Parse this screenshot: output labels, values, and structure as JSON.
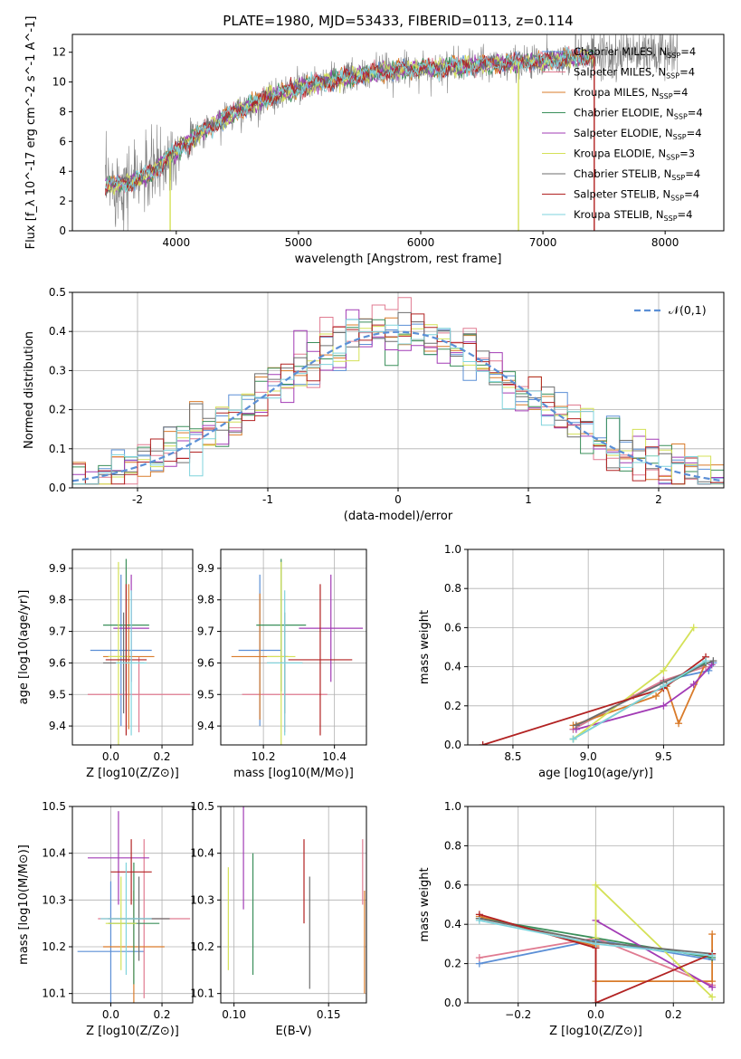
{
  "figure": {
    "title": "PLATE=1980, MJD=53433, FIBERID=0113, z=0.114"
  },
  "colors": {
    "chabrier_miles": "#5b8fd6",
    "salpeter_miles": "#e07b91",
    "kroupa_miles": "#d97b2a",
    "chabrier_elodie": "#3a8f5a",
    "salpeter_elodie": "#a23bb5",
    "kroupa_elodie": "#d4e157",
    "chabrier_stelib": "#6e6e6e",
    "salpeter_stelib": "#b22222",
    "kroupa_stelib": "#7fd3dc",
    "gaussian": "#5b8fd6"
  },
  "chart_data": [
    {
      "id": "spectrum",
      "type": "line",
      "title": "PLATE=1980, MJD=53433, FIBERID=0113, z=0.114",
      "xlabel": "wavelength [Angstrom, rest frame]",
      "ylabel": "Flux [f_λ 10^-17 erg cm^-2 s^-1 A^-1]",
      "xlim": [
        3150,
        8480
      ],
      "ylim": [
        0,
        13.2
      ],
      "xticks": [
        4000,
        5000,
        6000,
        7000,
        8000
      ],
      "yticks": [
        0,
        2,
        4,
        6,
        8,
        10,
        12
      ],
      "grid": false,
      "legend_position": "right",
      "legend": [
        {
          "name": "Chabrier MILES",
          "nssp": "4",
          "color_key": "chabrier_miles"
        },
        {
          "name": "Salpeter MILES",
          "nssp": "4",
          "color_key": "salpeter_miles"
        },
        {
          "name": "Kroupa MILES",
          "nssp": "4",
          "color_key": "kroupa_miles"
        },
        {
          "name": "Chabrier ELODIE",
          "nssp": "4",
          "color_key": "chabrier_elodie"
        },
        {
          "name": "Salpeter ELODIE",
          "nssp": "4",
          "color_key": "salpeter_elodie"
        },
        {
          "name": "Kroupa ELODIE",
          "nssp": "3",
          "color_key": "kroupa_elodie"
        },
        {
          "name": "Chabrier STELIB",
          "nssp": "4",
          "color_key": "chabrier_stelib"
        },
        {
          "name": "Salpeter STELIB",
          "nssp": "4",
          "color_key": "salpeter_stelib"
        },
        {
          "name": "Kroupa STELIB",
          "nssp": "4",
          "color_key": "kroupa_stelib"
        }
      ],
      "continuum": {
        "x": [
          3400,
          3600,
          3800,
          4000,
          4200,
          4400,
          4600,
          4800,
          5000,
          5200,
          5400,
          5600,
          5800,
          6000,
          6200,
          6400,
          6600,
          6800,
          7000,
          7200,
          7400
        ],
        "y": [
          3.0,
          3.2,
          3.9,
          5.4,
          6.6,
          7.6,
          8.4,
          9.1,
          9.6,
          10.0,
          10.3,
          10.6,
          10.8,
          10.9,
          11.0,
          11.1,
          11.2,
          11.3,
          11.4,
          11.6,
          11.7
        ]
      },
      "data_wavelength_range": [
        3420,
        8100
      ],
      "model_wavelength_range": [
        3420,
        7420
      ],
      "spikes": [
        {
          "x": 3950,
          "color_key": "kroupa_elodie"
        },
        {
          "x": 6800,
          "color_key": "kroupa_elodie"
        },
        {
          "x": 7420,
          "color_key": "salpeter_stelib"
        }
      ]
    },
    {
      "id": "residuals",
      "type": "bar",
      "xlabel": "(data-model)/error",
      "ylabel": "Normed distribution",
      "xlim": [
        -2.5,
        2.5
      ],
      "ylim": [
        0,
        0.5
      ],
      "xticks": [
        -2,
        -1,
        0,
        1,
        2
      ],
      "yticks": [
        0.0,
        0.1,
        0.2,
        0.3,
        0.4,
        0.5
      ],
      "grid": true,
      "legend_position": "top-right",
      "legend": [
        {
          "name": "𝒩(0,1)",
          "color_key": "gaussian"
        }
      ],
      "bin_width": 0.1,
      "bin_range": [
        -2.5,
        2.5
      ]
    },
    {
      "id": "age_vs_Z",
      "type": "scatter",
      "xlabel": "Z [log10(Z/Z⊙)]",
      "ylabel": "age [log10(age/yr)]",
      "xlim": [
        -0.15,
        0.32
      ],
      "ylim": [
        9.34,
        9.96
      ],
      "xticks": [
        0.0,
        0.2
      ],
      "xticklabels": [
        "0.0",
        "0.2"
      ],
      "yticks": [
        9.4,
        9.5,
        9.6,
        9.7,
        9.8,
        9.9
      ],
      "grid": true,
      "points": [
        {
          "x": 0.04,
          "y": 9.64,
          "xerr": 0.12,
          "yerr": 0.24,
          "color_key": "chabrier_miles"
        },
        {
          "x": 0.11,
          "y": 9.5,
          "xerr": 0.2,
          "yerr": 0.12,
          "color_key": "salpeter_miles"
        },
        {
          "x": 0.07,
          "y": 9.62,
          "xerr": 0.1,
          "yerr": 0.23,
          "color_key": "kroupa_miles"
        },
        {
          "x": 0.06,
          "y": 9.72,
          "xerr": 0.09,
          "yerr": 0.21,
          "color_key": "chabrier_elodie"
        },
        {
          "x": 0.08,
          "y": 9.71,
          "xerr": 0.07,
          "yerr": 0.17,
          "color_key": "salpeter_elodie"
        },
        {
          "x": 0.03,
          "y": 9.62,
          "xerr": 0.04,
          "yerr": 0.3,
          "color_key": "kroupa_elodie"
        },
        {
          "x": 0.05,
          "y": 9.6,
          "xerr": 0.08,
          "yerr": 0.16,
          "color_key": "chabrier_stelib"
        },
        {
          "x": 0.06,
          "y": 9.61,
          "xerr": 0.08,
          "yerr": 0.24,
          "color_key": "salpeter_stelib"
        },
        {
          "x": 0.08,
          "y": 9.6,
          "xerr": 0.06,
          "yerr": 0.23,
          "color_key": "kroupa_stelib"
        }
      ]
    },
    {
      "id": "age_vs_mass",
      "type": "scatter",
      "xlabel": "mass [log10(M/M⊙)]",
      "ylabel": "",
      "xlim": [
        10.08,
        10.49
      ],
      "ylim": [
        9.34,
        9.96
      ],
      "xticks": [
        10.2,
        10.4
      ],
      "xticklabels": [
        "10.2",
        "10.4"
      ],
      "yticks": [
        9.4,
        9.5,
        9.6,
        9.7,
        9.8,
        9.9
      ],
      "grid": true,
      "points": [
        {
          "x": 10.19,
          "y": 9.64,
          "xerr": 0.06,
          "yerr": 0.24,
          "color_key": "chabrier_miles"
        },
        {
          "x": 10.26,
          "y": 9.5,
          "xerr": 0.12,
          "yerr": 0.12,
          "color_key": "salpeter_miles"
        },
        {
          "x": 10.19,
          "y": 9.62,
          "xerr": 0.08,
          "yerr": 0.2,
          "color_key": "kroupa_miles"
        },
        {
          "x": 10.25,
          "y": 9.72,
          "xerr": 0.07,
          "yerr": 0.21,
          "color_key": "chabrier_elodie"
        },
        {
          "x": 10.39,
          "y": 9.71,
          "xerr": 0.09,
          "yerr": 0.17,
          "color_key": "salpeter_elodie"
        },
        {
          "x": 10.25,
          "y": 9.62,
          "xerr": 0.04,
          "yerr": 0.3,
          "color_key": "kroupa_elodie"
        },
        {
          "x": 10.26,
          "y": 9.6,
          "xerr": 0.05,
          "yerr": 0.16,
          "color_key": "chabrier_stelib"
        },
        {
          "x": 10.36,
          "y": 9.61,
          "xerr": 0.09,
          "yerr": 0.24,
          "color_key": "salpeter_stelib"
        },
        {
          "x": 10.26,
          "y": 9.6,
          "xerr": 0.05,
          "yerr": 0.23,
          "color_key": "kroupa_stelib"
        }
      ]
    },
    {
      "id": "weight_vs_age",
      "type": "line",
      "xlabel": "age [log10(age/yr)]",
      "ylabel": "mass weight",
      "xlim": [
        8.2,
        9.9
      ],
      "ylim": [
        0,
        1.0
      ],
      "xticks": [
        8.5,
        9.0,
        9.5
      ],
      "xticklabels": [
        "8.5",
        "9.0",
        "9.5"
      ],
      "yticks": [
        0.0,
        0.2,
        0.4,
        0.6,
        0.8,
        1.0
      ],
      "grid": true,
      "series": [
        {
          "color_key": "chabrier_miles",
          "x": [
            8.9,
            9.5,
            9.8,
            9.83
          ],
          "y": [
            0.08,
            0.33,
            0.38,
            0.42
          ]
        },
        {
          "color_key": "salpeter_miles",
          "x": [
            8.9,
            9.3,
            9.5,
            9.78
          ],
          "y": [
            0.08,
            0.25,
            0.33,
            0.4
          ]
        },
        {
          "color_key": "kroupa_miles",
          "x": [
            8.9,
            9.45,
            9.52,
            9.6,
            9.78
          ],
          "y": [
            0.1,
            0.25,
            0.3,
            0.11,
            0.42
          ]
        },
        {
          "color_key": "chabrier_elodie",
          "x": [
            8.9,
            9.5,
            9.78
          ],
          "y": [
            0.03,
            0.3,
            0.42
          ]
        },
        {
          "color_key": "salpeter_elodie",
          "x": [
            8.92,
            9.5,
            9.7,
            9.82
          ],
          "y": [
            0.08,
            0.2,
            0.31,
            0.41
          ]
        },
        {
          "color_key": "kroupa_elodie",
          "x": [
            8.9,
            9.5,
            9.7
          ],
          "y": [
            0.03,
            0.38,
            0.6
          ]
        },
        {
          "color_key": "chabrier_stelib",
          "x": [
            8.92,
            9.5,
            9.83
          ],
          "y": [
            0.1,
            0.32,
            0.43
          ]
        },
        {
          "color_key": "salpeter_stelib",
          "x": [
            8.3,
            9.5,
            9.78
          ],
          "y": [
            0.0,
            0.29,
            0.45
          ]
        },
        {
          "color_key": "kroupa_stelib",
          "x": [
            8.9,
            9.5,
            9.78
          ],
          "y": [
            0.03,
            0.3,
            0.43
          ]
        }
      ]
    },
    {
      "id": "mass_vs_Z",
      "type": "scatter",
      "xlabel": "Z [log10(Z/Z⊙)]",
      "ylabel": "mass [log10(M/M⊙)]",
      "xlim": [
        -0.15,
        0.32
      ],
      "ylim": [
        10.08,
        10.5
      ],
      "xticks": [
        0.0,
        0.2
      ],
      "xticklabels": [
        "0.0",
        "0.2"
      ],
      "yticks": [
        10.1,
        10.2,
        10.3,
        10.4,
        10.5
      ],
      "grid": true,
      "points": [
        {
          "x": 0.0,
          "y": 10.19,
          "xerr": 0.13,
          "yerr": 0.15,
          "color_key": "chabrier_miles"
        },
        {
          "x": 0.13,
          "y": 10.26,
          "xerr": 0.18,
          "yerr": 0.17,
          "color_key": "salpeter_miles"
        },
        {
          "x": 0.09,
          "y": 10.2,
          "xerr": 0.12,
          "yerr": 0.12,
          "color_key": "kroupa_miles"
        },
        {
          "x": 0.09,
          "y": 10.25,
          "xerr": 0.1,
          "yerr": 0.13,
          "color_key": "chabrier_elodie"
        },
        {
          "x": 0.03,
          "y": 10.39,
          "xerr": 0.12,
          "yerr": 0.1,
          "color_key": "salpeter_elodie"
        },
        {
          "x": 0.04,
          "y": 10.25,
          "xerr": 0.06,
          "yerr": 0.1,
          "color_key": "kroupa_elodie"
        },
        {
          "x": 0.11,
          "y": 10.26,
          "xerr": 0.12,
          "yerr": 0.09,
          "color_key": "chabrier_stelib"
        },
        {
          "x": 0.08,
          "y": 10.36,
          "xerr": 0.08,
          "yerr": 0.07,
          "color_key": "salpeter_stelib"
        },
        {
          "x": 0.06,
          "y": 10.26,
          "xerr": 0.1,
          "yerr": 0.12,
          "color_key": "kroupa_stelib"
        }
      ]
    },
    {
      "id": "mass_vs_ebv",
      "type": "scatter",
      "xlabel": "E(B-V)",
      "ylabel": "",
      "xlim": [
        0.093,
        0.17
      ],
      "ylim": [
        10.08,
        10.5
      ],
      "xticks": [
        0.1,
        0.15
      ],
      "xticklabels": [
        "0.10",
        "0.15"
      ],
      "yticks": [
        10.1,
        10.2,
        10.3,
        10.4,
        10.5
      ],
      "grid": true,
      "points": [
        {
          "x": 0.097,
          "y": 10.26,
          "yerr": 0.11,
          "color_key": "kroupa_elodie"
        },
        {
          "x": 0.105,
          "y": 10.39,
          "yerr": 0.11,
          "color_key": "salpeter_elodie"
        },
        {
          "x": 0.11,
          "y": 10.27,
          "yerr": 0.13,
          "color_key": "chabrier_elodie"
        },
        {
          "x": 0.137,
          "y": 10.34,
          "yerr": 0.09,
          "color_key": "salpeter_stelib"
        },
        {
          "x": 0.14,
          "y": 10.23,
          "yerr": 0.12,
          "color_key": "chabrier_stelib"
        },
        {
          "x": 0.168,
          "y": 10.36,
          "yerr": 0.07,
          "color_key": "salpeter_miles"
        },
        {
          "x": 0.169,
          "y": 10.21,
          "yerr": 0.11,
          "color_key": "kroupa_miles"
        }
      ]
    },
    {
      "id": "weight_vs_Z",
      "type": "line",
      "xlabel": "Z [log10(Z/Z⊙)]",
      "ylabel": "mass weight",
      "xlim": [
        -0.33,
        0.33
      ],
      "ylim": [
        0,
        1.0
      ],
      "xticks": [
        -0.2,
        0.0,
        0.2
      ],
      "xticklabels": [
        "−0.2",
        "0.0",
        "0.2"
      ],
      "yticks": [
        0.0,
        0.2,
        0.4,
        0.6,
        0.8,
        1.0
      ],
      "grid": true,
      "series": [
        {
          "color_key": "chabrier_miles",
          "x": [
            -0.3,
            0.0,
            0.3
          ],
          "y": [
            0.2,
            0.32,
            0.22
          ]
        },
        {
          "color_key": "salpeter_miles",
          "x": [
            -0.3,
            0.0,
            0.3
          ],
          "y": [
            0.23,
            0.33,
            0.09
          ]
        },
        {
          "color_key": "kroupa_miles",
          "x": [
            -0.3,
            0.0,
            0.0,
            0.3,
            0.3
          ],
          "y": [
            0.44,
            0.29,
            0.11,
            0.11,
            0.35
          ]
        },
        {
          "color_key": "chabrier_elodie",
          "x": [
            -0.3,
            0.0,
            0.3
          ],
          "y": [
            0.43,
            0.33,
            0.23
          ]
        },
        {
          "color_key": "salpeter_elodie",
          "x": [
            0.0,
            0.3
          ],
          "y": [
            0.42,
            0.08
          ]
        },
        {
          "color_key": "kroupa_elodie",
          "x": [
            0.0,
            0.0,
            0.3
          ],
          "y": [
            0.33,
            0.6,
            0.03
          ]
        },
        {
          "color_key": "chabrier_stelib",
          "x": [
            -0.3,
            0.0,
            0.3
          ],
          "y": [
            0.43,
            0.31,
            0.25
          ]
        },
        {
          "color_key": "salpeter_stelib",
          "x": [
            -0.3,
            0.0,
            0.0,
            0.3
          ],
          "y": [
            0.45,
            0.28,
            0.0,
            0.25
          ]
        },
        {
          "color_key": "kroupa_stelib",
          "x": [
            -0.3,
            0.0,
            0.3
          ],
          "y": [
            0.42,
            0.3,
            0.24
          ]
        }
      ]
    }
  ]
}
